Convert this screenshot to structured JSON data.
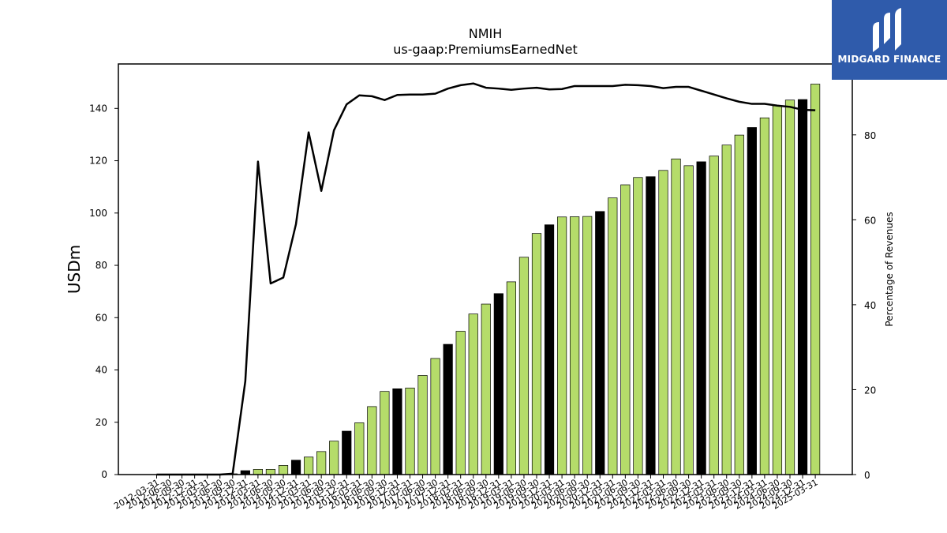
{
  "chart_data": {
    "type": "bar",
    "title": "NMIH",
    "subtitle": "us-gaap:PremiumsEarnedNet",
    "ylabel": "USDm",
    "y2label": "Percentage of Revenues",
    "ylim": [
      0,
      157
    ],
    "y2lim": [
      0,
      96.7
    ],
    "yticks": [
      0,
      20,
      40,
      60,
      80,
      100,
      120,
      140
    ],
    "y2ticks": [
      0,
      20,
      40,
      60,
      80
    ],
    "x_tick_labels": [
      "2012-03-31",
      "2012-06-30",
      "2012-09-30",
      "2012-12-31",
      "2013-03-31",
      "2013-06-30",
      "2013-09-30",
      "2013-12-31",
      "2014-03-31",
      "2014-06-30",
      "2014-09-30",
      "2014-12-31",
      "2015-03-31",
      "2015-06-30",
      "2015-09-30",
      "2015-12-31",
      "2016-03-31",
      "2016-06-30",
      "2016-09-30",
      "2016-12-31",
      "2017-03-31",
      "2017-06-30",
      "2017-09-30",
      "2017-12-31",
      "2018-03-31",
      "2018-06-30",
      "2018-09-30",
      "2018-12-31",
      "2019-03-31",
      "2019-06-30",
      "2019-09-30",
      "2019-12-31",
      "2020-03-31",
      "2020-06-30",
      "2020-09-30",
      "2020-12-31",
      "2021-03-31",
      "2021-06-30",
      "2021-09-30",
      "2021-12-31",
      "2022-03-31",
      "2022-06-30",
      "2022-09-30",
      "2022-12-31",
      "2023-03-31",
      "2023-06-30",
      "2023-09-30",
      "2023-12-31",
      "2024-03-31",
      "2024-06-30",
      "2024-09-30",
      "2024-12-31",
      "2025-03-31"
    ],
    "series": [
      {
        "axis": "left",
        "kind": "bar",
        "values": [
          0.0,
          0.0,
          0.0,
          0.0,
          0.0,
          0.0,
          0.3,
          1.5,
          2.0,
          2.0,
          3.5,
          5.5,
          6.7,
          8.8,
          12.8,
          16.6,
          19.8,
          26.0,
          31.8,
          32.8,
          33.1,
          37.9,
          44.4,
          49.8,
          54.8,
          61.4,
          65.2,
          69.2,
          73.7,
          83.1,
          92.2,
          95.5,
          98.5,
          98.6,
          98.7,
          100.6,
          105.8,
          110.8,
          113.6,
          113.9,
          116.3,
          120.7,
          118.1,
          119.6,
          121.8,
          126.0,
          129.8,
          132.7,
          136.4,
          141.0,
          143.2,
          143.4,
          149.3
        ],
        "highlight": [
          false,
          false,
          false,
          false,
          false,
          false,
          false,
          true,
          false,
          false,
          false,
          true,
          false,
          false,
          false,
          true,
          false,
          false,
          false,
          true,
          false,
          false,
          false,
          true,
          false,
          false,
          false,
          true,
          false,
          false,
          false,
          true,
          false,
          false,
          false,
          true,
          false,
          false,
          false,
          true,
          false,
          false,
          false,
          true,
          false,
          false,
          false,
          true,
          false,
          false,
          false,
          true,
          false
        ],
        "color": "#b5dc6a",
        "highlight_color": "#000000"
      },
      {
        "axis": "right",
        "kind": "line",
        "values": [
          0.0,
          0.0,
          0.0,
          0.0,
          0.0,
          0.0,
          0.2,
          22.0,
          73.7,
          45.0,
          46.4,
          59.0,
          80.6,
          66.8,
          81.1,
          87.2,
          89.3,
          89.1,
          88.2,
          89.4,
          89.5,
          89.5,
          89.7,
          90.9,
          91.7,
          92.1,
          91.1,
          90.9,
          90.6,
          90.9,
          91.1,
          90.7,
          90.8,
          91.5,
          91.5,
          91.5,
          91.5,
          91.8,
          91.7,
          91.5,
          91.0,
          91.3,
          91.3,
          90.4,
          89.5,
          88.6,
          87.8,
          87.3,
          87.3,
          86.9,
          86.6,
          85.9,
          85.8
        ],
        "color": "#000000"
      }
    ]
  },
  "logo": {
    "text": "MIDGARD FINANCE",
    "bg": "#2f5bab"
  }
}
